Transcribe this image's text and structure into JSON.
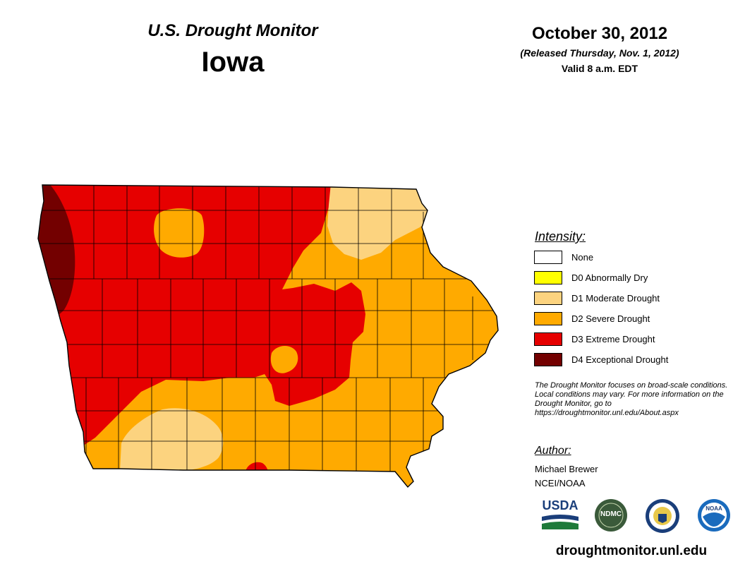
{
  "header": {
    "title": "U.S. Drought Monitor",
    "state": "Iowa",
    "date": "October 30, 2012",
    "released": "(Released Thursday, Nov. 1, 2012)",
    "valid": "Valid 8 a.m. EDT"
  },
  "legend": {
    "title": "Intensity:",
    "items": [
      {
        "label": "None",
        "color": "#ffffff"
      },
      {
        "label": "D0 Abnormally Dry",
        "color": "#ffff00"
      },
      {
        "label": "D1 Moderate Drought",
        "color": "#fcd37f"
      },
      {
        "label": "D2 Severe Drought",
        "color": "#ffaa00"
      },
      {
        "label": "D3 Extreme Drought",
        "color": "#e60000"
      },
      {
        "label": "D4 Exceptional Drought",
        "color": "#730000"
      }
    ]
  },
  "note": "The Drought Monitor focuses on broad-scale conditions. Local conditions may vary. For more information on the Drought Monitor, go to https://droughtmonitor.unl.edu/About.aspx",
  "author": {
    "title": "Author:",
    "name": "Michael Brewer",
    "org": "NCEI/NOAA"
  },
  "logos": {
    "usda": "USDA",
    "ndmc": "NDMC",
    "noaa": "NOAA"
  },
  "footer_url": "droughtmonitor.unl.edu"
}
